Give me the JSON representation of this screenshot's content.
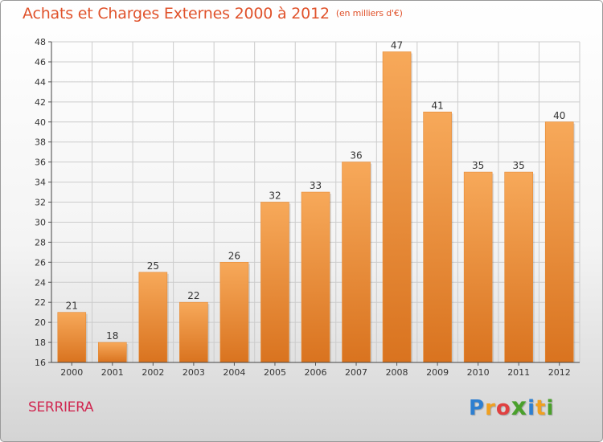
{
  "title": "Achats et Charges Externes 2000 à 2012",
  "unit_note": "(en milliers d'€)",
  "commune": "SERRIERA",
  "logo": {
    "letters": [
      "P",
      "r",
      "o",
      "x",
      "i",
      "t",
      "i"
    ],
    "colors": [
      "#2e7fd0",
      "#f0a020",
      "#e04040",
      "#4aa02c",
      "#2e7fd0",
      "#f0a020",
      "#4aa02c"
    ]
  },
  "colors": {
    "title": "#e0522b",
    "commune": "#d02851",
    "bar_light": "#f7a95a",
    "bar_dark": "#d9731f",
    "grid": "#cccccc"
  },
  "chart_data": {
    "type": "bar",
    "title": "Achats et Charges Externes 2000 à 2012",
    "categories": [
      "2000",
      "2001",
      "2002",
      "2003",
      "2004",
      "2005",
      "2006",
      "2007",
      "2008",
      "2009",
      "2010",
      "2011",
      "2012"
    ],
    "values": [
      21,
      18,
      25,
      22,
      26,
      32,
      33,
      36,
      47,
      41,
      35,
      35,
      40
    ],
    "ylim": [
      16,
      48
    ],
    "yticks": [
      16,
      18,
      20,
      22,
      24,
      26,
      28,
      30,
      32,
      34,
      36,
      38,
      40,
      42,
      44,
      46,
      48
    ],
    "grid": true,
    "data_labels": true,
    "legend": "none"
  }
}
